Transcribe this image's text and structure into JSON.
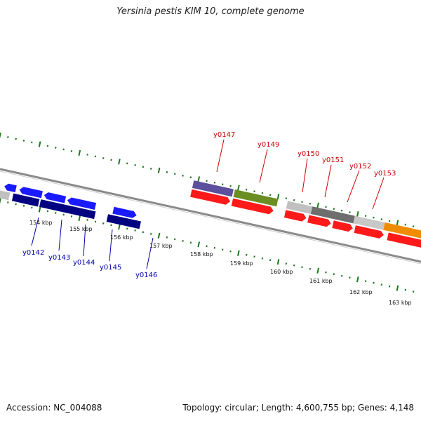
{
  "title": "Yersinia pestis KIM 10, complete genome",
  "footer": {
    "accession": "Accession: NC_004088",
    "summary": "Topology: circular; Length: 4,600,755 bp; Genes: 4,148"
  },
  "colors": {
    "tick": "#1a7a1a",
    "backbone": "#8a8a8a",
    "label_top": "#cc0000",
    "label_bottom": "#0000aa"
  },
  "axis_labels": [
    "154 kbp",
    "155 kbp",
    "156 kbp",
    "157 kbp",
    "158 kbp",
    "159 kbp",
    "160 kbp",
    "161 kbp",
    "162 kbp",
    "163 kbp"
  ],
  "genes_top": [
    {
      "name": "y0147",
      "row": "upper",
      "strand": "forward",
      "color": "#5b4f9e"
    },
    {
      "name": "y0149",
      "row": "upper",
      "strand": "forward",
      "color": "#6b8e23"
    },
    {
      "name": "y0150",
      "row": "upper",
      "strand": "forward",
      "color": "#c0c0c0"
    },
    {
      "name": "y0151",
      "row": "upper",
      "strand": "forward",
      "color": "#6e6e6e"
    },
    {
      "name": "y0152",
      "row": "upper",
      "strand": "forward",
      "color": "#c8c8c8"
    },
    {
      "name": "y0153",
      "row": "upper",
      "strand": "forward",
      "color": "#f08c00"
    }
  ],
  "genes_bottom": [
    {
      "name": "y0142",
      "color": "#1a1aff"
    },
    {
      "name": "y0143",
      "color": "#1a1aff"
    },
    {
      "name": "y0144",
      "color": "#000080"
    },
    {
      "name": "y0145",
      "color": "#000080"
    },
    {
      "name": "y0146",
      "color": "#000080"
    }
  ]
}
